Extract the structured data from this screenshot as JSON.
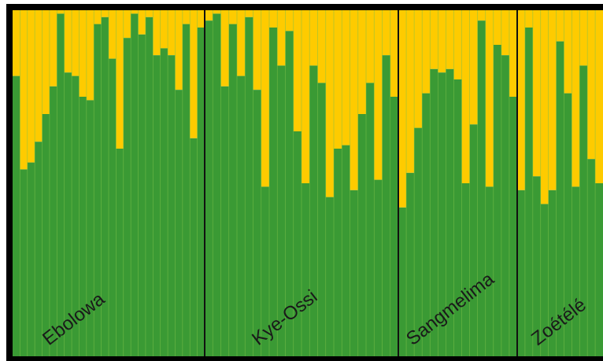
{
  "chart_data": {
    "type": "bar",
    "stacked": true,
    "normalized": true,
    "ylim": [
      0,
      1
    ],
    "colors": {
      "cluster1": "#3a9a34",
      "cluster2": "#fecb00",
      "frame": "#000000",
      "divider": "#111111",
      "bar_separator": "#7ec24a"
    },
    "groups": [
      {
        "name": "Ebolowa",
        "cluster1": [
          0.81,
          0.54,
          0.56,
          0.62,
          0.7,
          0.78,
          0.99,
          0.82,
          0.81,
          0.75,
          0.74,
          0.96,
          0.98,
          0.86,
          0.6,
          0.92,
          0.99,
          0.93,
          0.98,
          0.87,
          0.89,
          0.87,
          0.77,
          0.96,
          0.63,
          0.95
        ]
      },
      {
        "name": "Kye-Ossi",
        "cluster1": [
          0.97,
          0.99,
          0.78,
          0.96,
          0.81,
          0.98,
          0.77,
          0.49,
          0.95,
          0.84,
          0.94,
          0.65,
          0.5,
          0.84,
          0.79,
          0.46,
          0.6,
          0.61,
          0.48,
          0.7,
          0.79,
          0.51,
          0.87,
          0.75
        ]
      },
      {
        "name": "Sangmelima",
        "cluster1": [
          0.43,
          0.53,
          0.66,
          0.76,
          0.83,
          0.82,
          0.83,
          0.8,
          0.5,
          0.67,
          0.97,
          0.49,
          0.9,
          0.87,
          0.75
        ]
      },
      {
        "name": "Zoétélé",
        "cluster1": [
          0.48,
          0.95,
          0.52,
          0.44,
          0.48,
          0.91,
          0.76,
          0.49,
          0.84,
          0.57,
          0.5
        ]
      }
    ]
  }
}
